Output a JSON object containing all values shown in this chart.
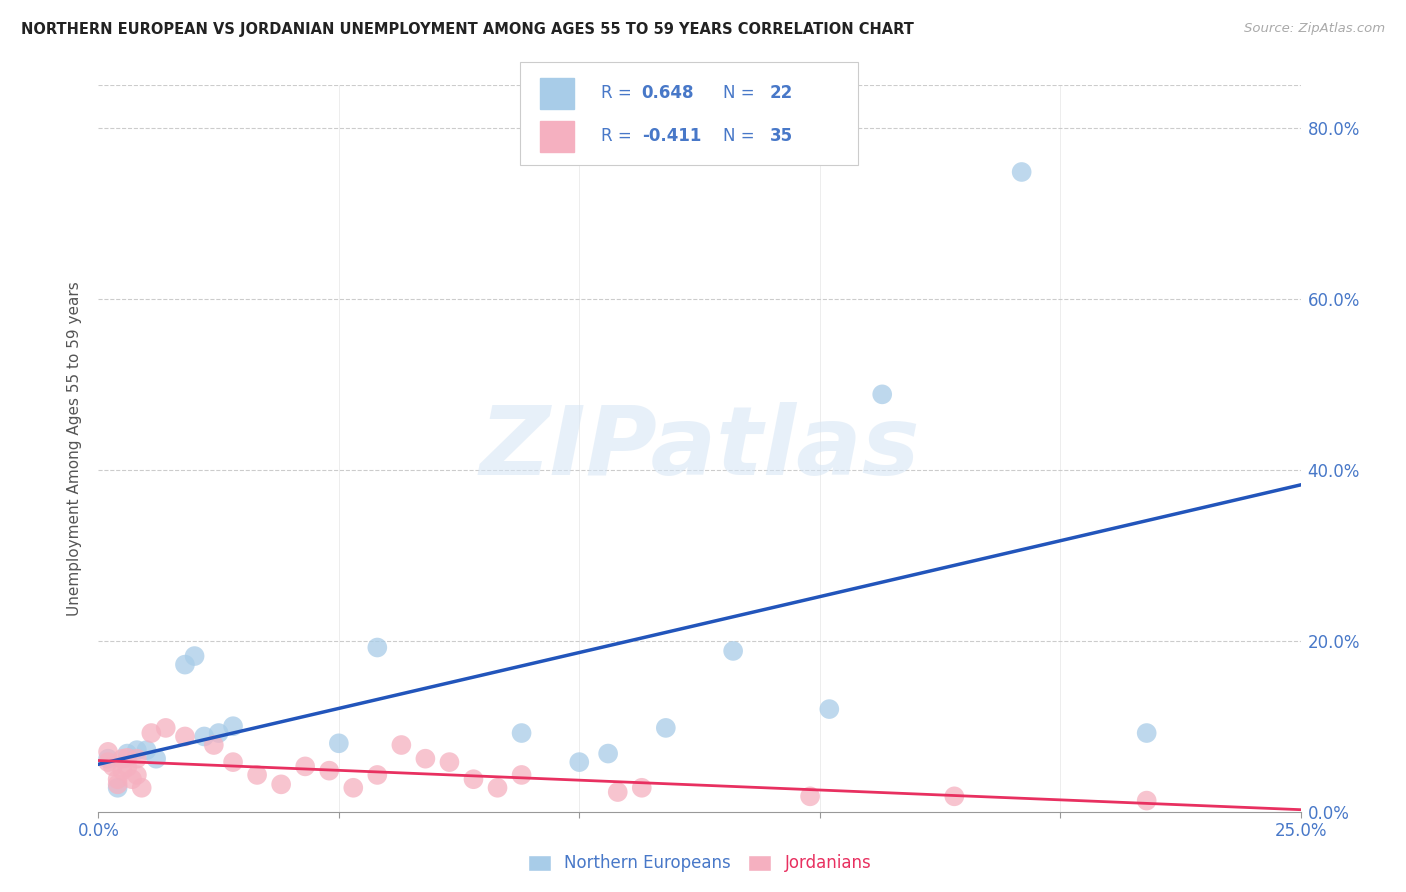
{
  "title": "NORTHERN EUROPEAN VS JORDANIAN UNEMPLOYMENT AMONG AGES 55 TO 59 YEARS CORRELATION CHART",
  "source": "Source: ZipAtlas.com",
  "ylabel": "Unemployment Among Ages 55 to 59 years",
  "xlim": [
    0,
    0.25
  ],
  "ylim": [
    0,
    0.85
  ],
  "xticks": [
    0.0,
    0.05,
    0.1,
    0.15,
    0.2,
    0.25
  ],
  "xtick_labels_show": [
    "0.0%",
    "",
    "",
    "",
    "",
    "25.0%"
  ],
  "yticks": [
    0.0,
    0.2,
    0.4,
    0.6,
    0.8
  ],
  "ytick_labels": [
    "0.0%",
    "20.0%",
    "40.0%",
    "60.0%",
    "80.0%"
  ],
  "blue_scatter_color": "#a8cce8",
  "pink_scatter_color": "#f5b0c0",
  "blue_line_color": "#2255bb",
  "pink_line_color": "#e83060",
  "tick_color": "#4878c8",
  "text_color": "#4878c8",
  "r_blue": "0.648",
  "n_blue": "22",
  "r_pink": "-0.411",
  "n_pink": "35",
  "label_blue": "Northern Europeans",
  "label_pink": "Jordanians",
  "watermark": "ZIPatlas",
  "blue_x": [
    0.002,
    0.004,
    0.006,
    0.008,
    0.01,
    0.012,
    0.018,
    0.02,
    0.022,
    0.025,
    0.028,
    0.05,
    0.058,
    0.088,
    0.1,
    0.106,
    0.118,
    0.132,
    0.152,
    0.163,
    0.192,
    0.218
  ],
  "blue_y": [
    0.062,
    0.028,
    0.068,
    0.072,
    0.072,
    0.062,
    0.172,
    0.182,
    0.088,
    0.092,
    0.1,
    0.08,
    0.192,
    0.092,
    0.058,
    0.068,
    0.098,
    0.188,
    0.12,
    0.488,
    0.748,
    0.092
  ],
  "pink_x": [
    0.002,
    0.002,
    0.003,
    0.004,
    0.004,
    0.005,
    0.005,
    0.006,
    0.006,
    0.007,
    0.008,
    0.008,
    0.009,
    0.011,
    0.014,
    0.018,
    0.024,
    0.028,
    0.033,
    0.038,
    0.043,
    0.048,
    0.053,
    0.058,
    0.063,
    0.068,
    0.073,
    0.078,
    0.083,
    0.088,
    0.108,
    0.113,
    0.148,
    0.178,
    0.218
  ],
  "pink_y": [
    0.058,
    0.07,
    0.053,
    0.038,
    0.032,
    0.048,
    0.062,
    0.052,
    0.063,
    0.038,
    0.043,
    0.062,
    0.028,
    0.092,
    0.098,
    0.088,
    0.078,
    0.058,
    0.043,
    0.032,
    0.053,
    0.048,
    0.028,
    0.043,
    0.078,
    0.062,
    0.058,
    0.038,
    0.028,
    0.043,
    0.023,
    0.028,
    0.018,
    0.018,
    0.013
  ]
}
